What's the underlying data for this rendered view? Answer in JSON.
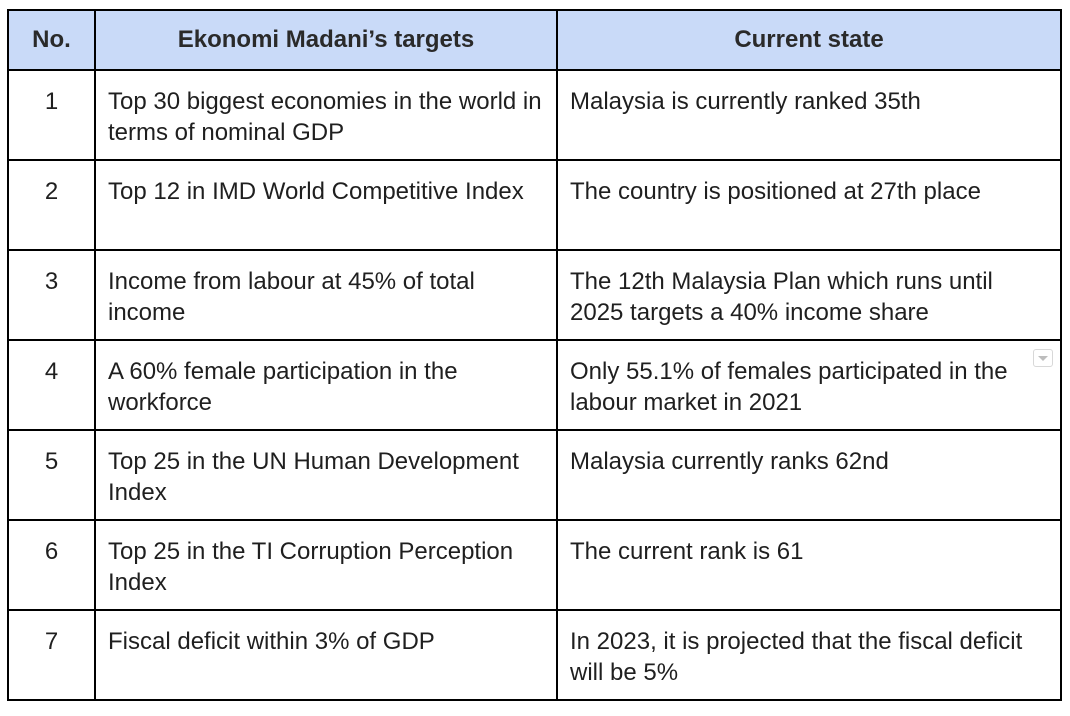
{
  "table": {
    "headers": {
      "no": "No.",
      "targets": "Ekonomi Madani’s targets",
      "state": "Current state"
    },
    "rows": [
      {
        "no": "1",
        "target": "Top 30 biggest economies in the world in terms of nominal GDP",
        "state": "Malaysia is currently ranked 35th"
      },
      {
        "no": "2",
        "target": "Top 12 in IMD World Competitive Index",
        "state": "The country is positioned at 27th place"
      },
      {
        "no": "3",
        "target": "Income from labour at 45% of total income",
        "state": "The 12th Malaysia Plan which runs until 2025 targets a 40% income share"
      },
      {
        "no": "4",
        "target": "A 60% female participation in the workforce",
        "state": "Only 55.1% of females participated in the labour market in 2021"
      },
      {
        "no": "5",
        "target": "Top 25 in the UN Human Development Index",
        "state": "Malaysia currently ranks 62nd"
      },
      {
        "no": "6",
        "target": "Top 25 in the TI Corruption Perception Index",
        "state": "The current rank is 61"
      },
      {
        "no": "7",
        "target": "Fiscal deficit within 3% of GDP",
        "state": "In 2023, it is projected that the fiscal deficit will be 5%"
      }
    ]
  },
  "colors": {
    "header_background": "#c9daf8",
    "border": "#000000",
    "text": "#1f1f1f"
  }
}
